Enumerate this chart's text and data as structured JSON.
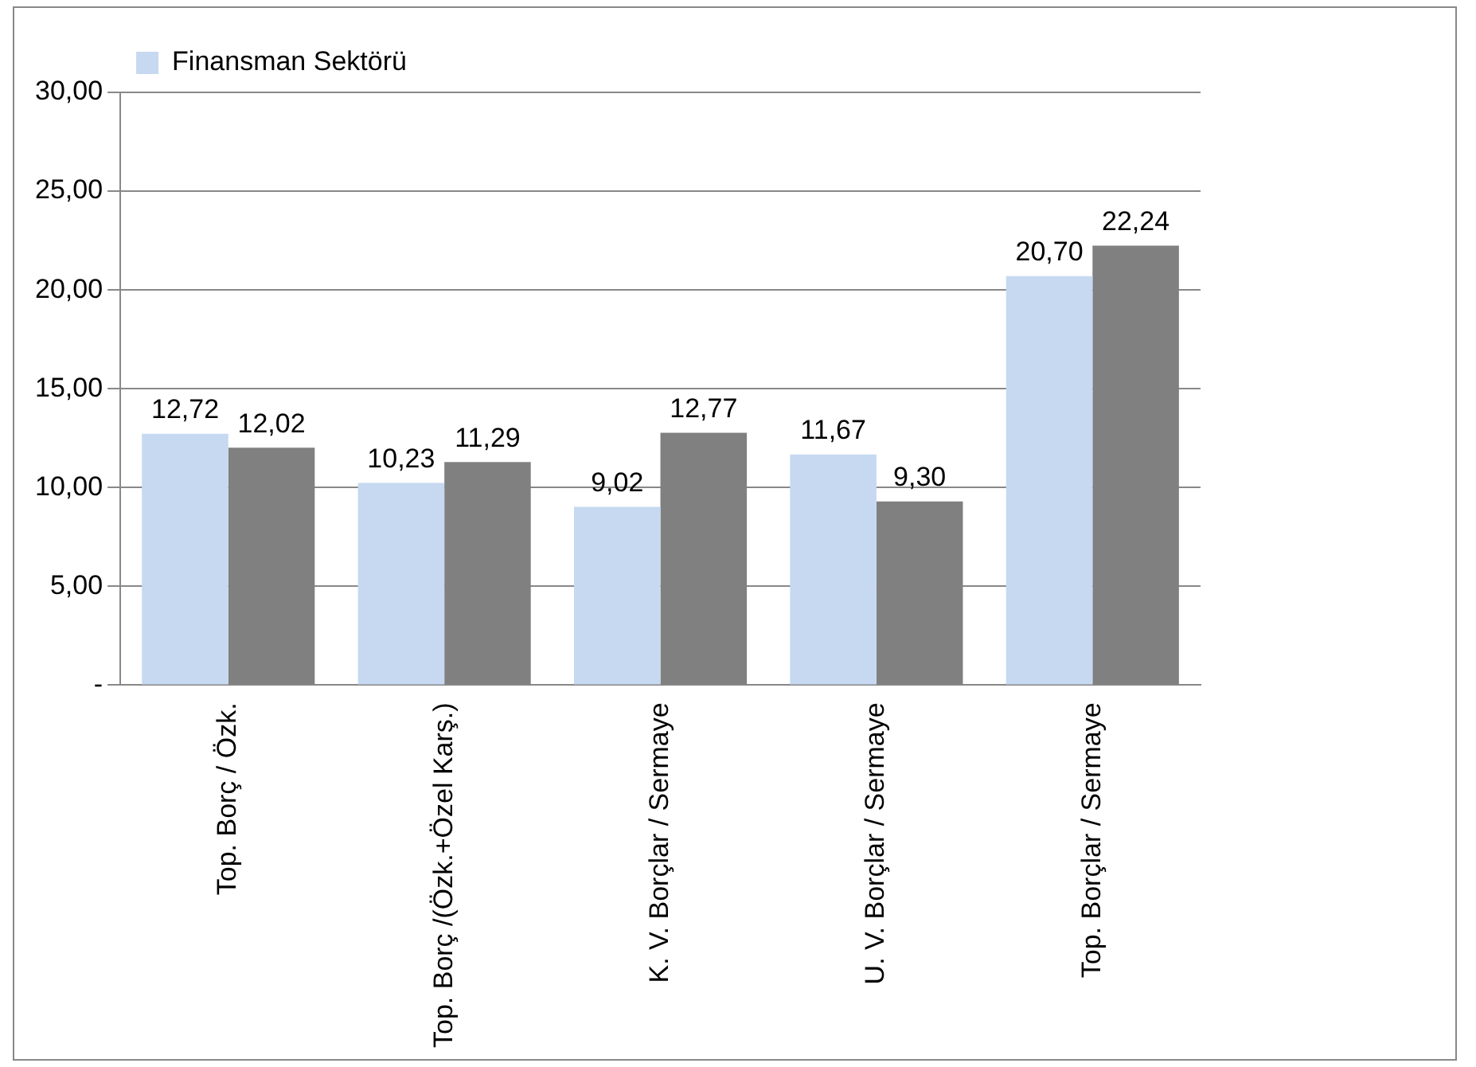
{
  "chart_data": {
    "type": "bar",
    "categories": [
      "Top. Borç / Özk.",
      "Top. Borç /(Özk.+Özel Karş.)",
      "K. V. Borçlar / Sermaye",
      "U. V. Borçlar / Sermaye",
      "Top. Borçlar / Sermaye"
    ],
    "series": [
      {
        "name": "Finansman Sektörü",
        "color": "#c6d9f1",
        "values": [
          12.72,
          10.23,
          9.02,
          11.67,
          20.7
        ],
        "value_labels": [
          "12,72",
          "10,23",
          "9,02",
          "11,67",
          "20,70"
        ]
      },
      {
        "color": "#808080",
        "values": [
          12.02,
          11.29,
          12.77,
          9.3,
          22.24
        ],
        "value_labels": [
          "12,02",
          "11,29",
          "12,77",
          "9,30",
          "22,24"
        ]
      }
    ],
    "ylim": [
      0,
      30
    ],
    "yticks": [
      {
        "value": 0,
        "label": "-"
      },
      {
        "value": 5,
        "label": "5,00"
      },
      {
        "value": 10,
        "label": "10,00"
      },
      {
        "value": 15,
        "label": "15,00"
      },
      {
        "value": 20,
        "label": "20,00"
      },
      {
        "value": 25,
        "label": "25,00"
      },
      {
        "value": 30,
        "label": "30,00"
      }
    ],
    "grid": "y",
    "legend": "top left"
  }
}
